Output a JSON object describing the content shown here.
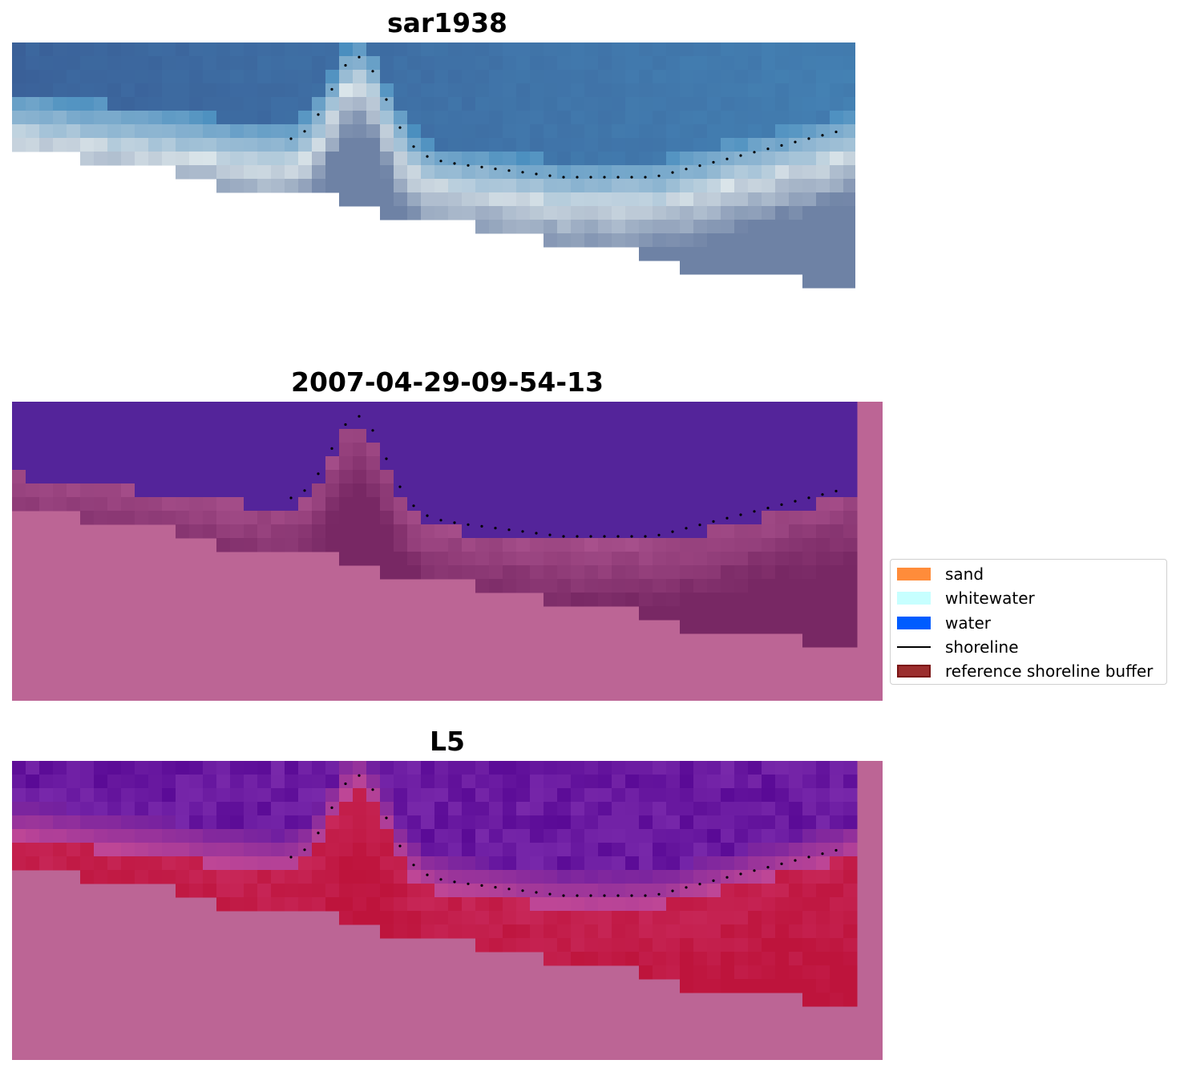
{
  "panels": [
    {
      "title": "sar1938",
      "image": "satellite-rgb"
    },
    {
      "title": "2007-04-29-09-54-13",
      "image": "classification-overlay"
    },
    {
      "title": "L5",
      "image": "index-overlay"
    }
  ],
  "legend": {
    "items": [
      {
        "label": "sand",
        "kind": "patch",
        "color": "#ff8c3a"
      },
      {
        "label": "whitewater",
        "kind": "patch",
        "color": "#c7ffff"
      },
      {
        "label": "water",
        "kind": "patch",
        "color": "#005cff"
      },
      {
        "label": "shoreline",
        "kind": "line",
        "color": "#000000"
      },
      {
        "label": "reference shoreline buffer",
        "kind": "patch",
        "color": "#9b2d2d",
        "edge": "#7a1414"
      }
    ]
  },
  "colors": {
    "water_class": "#54249a",
    "land_mask": "#bc6595",
    "shoreline_dots": "#000000",
    "sea_rgb": "#3a64a0",
    "surf_rgb": "#e6eef0"
  }
}
